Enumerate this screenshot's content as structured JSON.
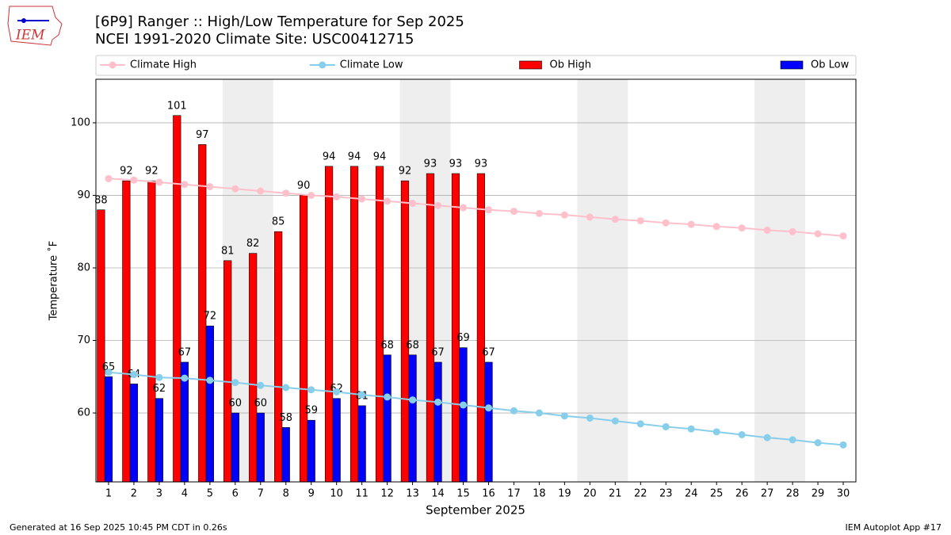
{
  "logo_text": "IEM",
  "footer_left": "Generated at 16 Sep 2025 10:45 PM CDT in 0.26s",
  "footer_right": "IEM Autoplot App #17",
  "chart_data": {
    "type": "bar",
    "title": "[6P9] Ranger :: High/Low Temperature for Sep 2025",
    "subtitle": "NCEI 1991-2020 Climate Site: USC00412715",
    "xlabel": "September 2025",
    "ylabel": "Temperature ˚F",
    "x": [
      1,
      2,
      3,
      4,
      5,
      6,
      7,
      8,
      9,
      10,
      11,
      12,
      13,
      14,
      15,
      16,
      17,
      18,
      19,
      20,
      21,
      22,
      23,
      24,
      25,
      26,
      27,
      28,
      29,
      30
    ],
    "xlim": [
      0.5,
      30.5
    ],
    "xticks": [
      1,
      2,
      3,
      4,
      5,
      6,
      7,
      8,
      9,
      10,
      11,
      12,
      13,
      14,
      15,
      16,
      17,
      18,
      19,
      20,
      21,
      22,
      23,
      24,
      25,
      26,
      27,
      28,
      29,
      30
    ],
    "ylim": [
      50.5,
      106
    ],
    "yticks": [
      60,
      70,
      80,
      90,
      100
    ],
    "grid": true,
    "legend": "top",
    "shaded_ranges": [
      [
        5.5,
        7.5
      ],
      [
        12.5,
        14.5
      ],
      [
        19.5,
        21.5
      ],
      [
        26.5,
        28.5
      ]
    ],
    "shade_color": "#eeeeee",
    "series": [
      {
        "name": "Climate High",
        "type": "line",
        "color": "#ffc0cb",
        "values": [
          92.3,
          92.1,
          91.8,
          91.5,
          91.2,
          90.9,
          90.6,
          90.3,
          90.0,
          89.8,
          89.5,
          89.2,
          88.9,
          88.6,
          88.3,
          88.0,
          87.8,
          87.5,
          87.3,
          87.0,
          86.7,
          86.5,
          86.2,
          86.0,
          85.7,
          85.5,
          85.2,
          85.0,
          84.7,
          84.4
        ]
      },
      {
        "name": "Climate Low",
        "type": "line",
        "color": "#87ceeb",
        "values": [
          65.6,
          65.3,
          64.9,
          64.8,
          64.5,
          64.2,
          63.8,
          63.5,
          63.2,
          62.9,
          62.5,
          62.2,
          61.8,
          61.5,
          61.1,
          60.7,
          60.3,
          60.0,
          59.6,
          59.3,
          58.9,
          58.5,
          58.1,
          57.8,
          57.4,
          57.0,
          56.6,
          56.3,
          55.9,
          55.6
        ]
      },
      {
        "name": "Ob High",
        "type": "bar",
        "color": "#ff0000",
        "values": [
          88,
          92,
          92,
          101,
          97,
          81,
          82,
          85,
          90,
          94,
          94,
          94,
          92,
          93,
          93,
          93,
          null,
          null,
          null,
          null,
          null,
          null,
          null,
          null,
          null,
          null,
          null,
          null,
          null,
          null
        ]
      },
      {
        "name": "Ob Low",
        "type": "bar",
        "color": "#0000ff",
        "values": [
          65,
          64,
          62,
          67,
          72,
          60,
          60,
          58,
          59,
          62,
          61,
          68,
          68,
          67,
          69,
          67,
          null,
          null,
          null,
          null,
          null,
          null,
          null,
          null,
          null,
          null,
          null,
          null,
          null,
          null
        ]
      }
    ]
  }
}
